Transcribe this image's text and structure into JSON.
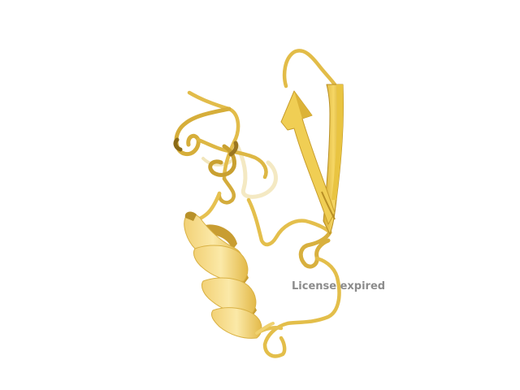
{
  "viewer": {
    "background_color": "#ffffff",
    "watermark_text": "License expired",
    "watermark_color": "#8c8c8c"
  },
  "molecule": {
    "representation": "cartoon",
    "colors": {
      "light": "#f7dc82",
      "main": "#e8c14a",
      "dark": "#b8912a",
      "shadow": "#8a6a18"
    },
    "elements": [
      "coil",
      "alpha-helix",
      "beta-hairpin",
      "loop"
    ]
  }
}
